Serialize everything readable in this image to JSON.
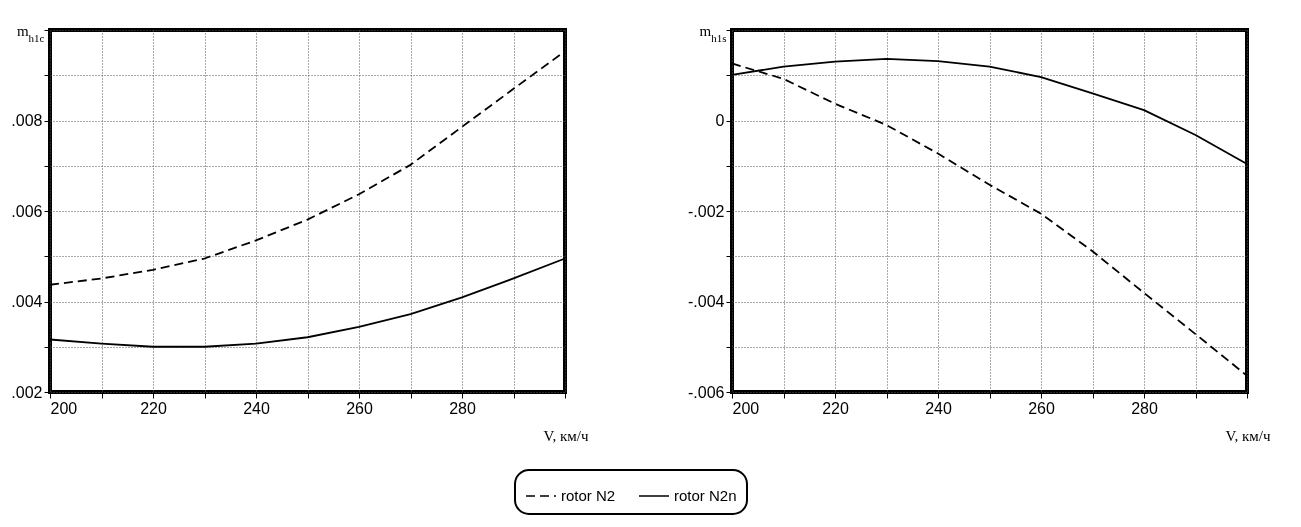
{
  "chart_data": [
    {
      "type": "line",
      "xlabel": "V, км/ч",
      "ylabel": "m$_{h1c}$",
      "x": [
        200,
        210,
        220,
        230,
        240,
        250,
        260,
        270,
        280,
        290,
        300
      ],
      "series": [
        {
          "name": "rotor N2",
          "color": "#000000",
          "line_style": "dashed",
          "values": [
            0.00437,
            0.00451,
            0.0047,
            0.00495,
            0.00535,
            0.00581,
            0.00637,
            0.00702,
            0.00786,
            0.0087,
            0.00953
          ]
        },
        {
          "name": "rotor N2n",
          "color": "#000000",
          "line_style": "solid",
          "values": [
            0.00316,
            0.00307,
            0.003,
            0.003,
            0.00307,
            0.00321,
            0.00344,
            0.00372,
            0.00409,
            0.00451,
            0.00495
          ]
        }
      ],
      "xlim": [
        200,
        300
      ],
      "xticks": [
        200,
        {
          "value": 210,
          "label": null
        },
        220,
        {
          "value": 230,
          "label": null
        },
        240,
        {
          "value": 250,
          "label": null
        },
        260,
        {
          "value": 270,
          "label": null
        },
        280,
        {
          "value": 290,
          "label": null
        },
        {
          "value": 300,
          "label": null
        }
      ],
      "ylim": [
        0.002,
        0.01
      ],
      "yticks": [
        {
          "value": 0.002,
          "label": ".002"
        },
        {
          "value": 0.003,
          "label": null
        },
        {
          "value": 0.004,
          "label": ".004"
        },
        {
          "value": 0.005,
          "label": null
        },
        {
          "value": 0.006,
          "label": ".006"
        },
        {
          "value": 0.007,
          "label": null
        },
        {
          "value": 0.008,
          "label": ".008"
        },
        {
          "value": 0.009,
          "label": null
        },
        {
          "value": 0.01,
          "label": null
        }
      ],
      "grid": true,
      "legend": "bottom"
    },
    {
      "type": "line",
      "xlabel": "V, км/ч",
      "ylabel": "m$_{h1s}$",
      "x": [
        200,
        210,
        220,
        230,
        240,
        250,
        260,
        270,
        280,
        290,
        300
      ],
      "series": [
        {
          "name": "rotor N2",
          "color": "#000000",
          "line_style": "dashed",
          "values": [
            0.00126,
            0.00092,
            0.00037,
            -0.0001,
            -0.00073,
            -0.00142,
            -0.00206,
            -0.00289,
            -0.00381,
            -0.00472,
            -0.00564
          ]
        },
        {
          "name": "rotor N2n",
          "color": "#000000",
          "line_style": "solid",
          "values": [
            0.00101,
            0.00119,
            0.0013,
            0.00136,
            0.00131,
            0.00119,
            0.00096,
            0.0006,
            0.00023,
            -0.00032,
            -0.00096
          ]
        }
      ],
      "xlim": [
        200,
        300
      ],
      "xticks": [
        200,
        {
          "value": 210,
          "label": null
        },
        220,
        {
          "value": 230,
          "label": null
        },
        240,
        {
          "value": 250,
          "label": null
        },
        260,
        {
          "value": 270,
          "label": null
        },
        280,
        {
          "value": 290,
          "label": null
        },
        {
          "value": 300,
          "label": null
        }
      ],
      "ylim": [
        -0.006,
        0.002
      ],
      "yticks": [
        {
          "value": -0.006,
          "label": "-.006"
        },
        {
          "value": -0.005,
          "label": null
        },
        {
          "value": -0.004,
          "label": "-.004"
        },
        {
          "value": -0.003,
          "label": null
        },
        {
          "value": -0.002,
          "label": "-.002"
        },
        {
          "value": -0.001,
          "label": null
        },
        0,
        {
          "value": 0.001,
          "label": null
        },
        {
          "value": 0.002,
          "label": null
        }
      ],
      "grid": true,
      "legend": "bottom"
    }
  ]
}
